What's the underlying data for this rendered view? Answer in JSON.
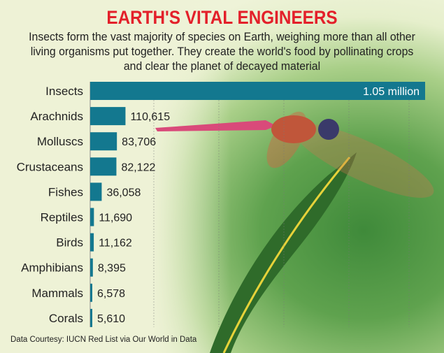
{
  "title": "EARTH'S VITAL ENGINEERS",
  "subtitle": "Insects form the vast majority of species on Earth, weighing more than all other living organisms put together. They create the world's food by pollinating crops and clear the planet of decayed material",
  "footer": "Data Courtesy: IUCN Red List via Our World in Data",
  "colors": {
    "title": "#e3202a",
    "bar": "#13788f"
  },
  "chart_data": {
    "type": "bar",
    "orientation": "horizontal",
    "categories": [
      "Insects",
      "Arachnids",
      "Molluscs",
      "Crustaceans",
      "Fishes",
      "Reptiles",
      "Birds",
      "Amphibians",
      "Mammals",
      "Corals"
    ],
    "values": [
      1050000,
      110615,
      83706,
      82122,
      36058,
      11690,
      11162,
      8395,
      6578,
      5610
    ],
    "data_labels": [
      "1.05 million",
      "110,615",
      "83,706",
      "82,122",
      "36,058",
      "11,690",
      "11,162",
      "8,395",
      "6,578",
      "5,610"
    ],
    "grid": true
  }
}
